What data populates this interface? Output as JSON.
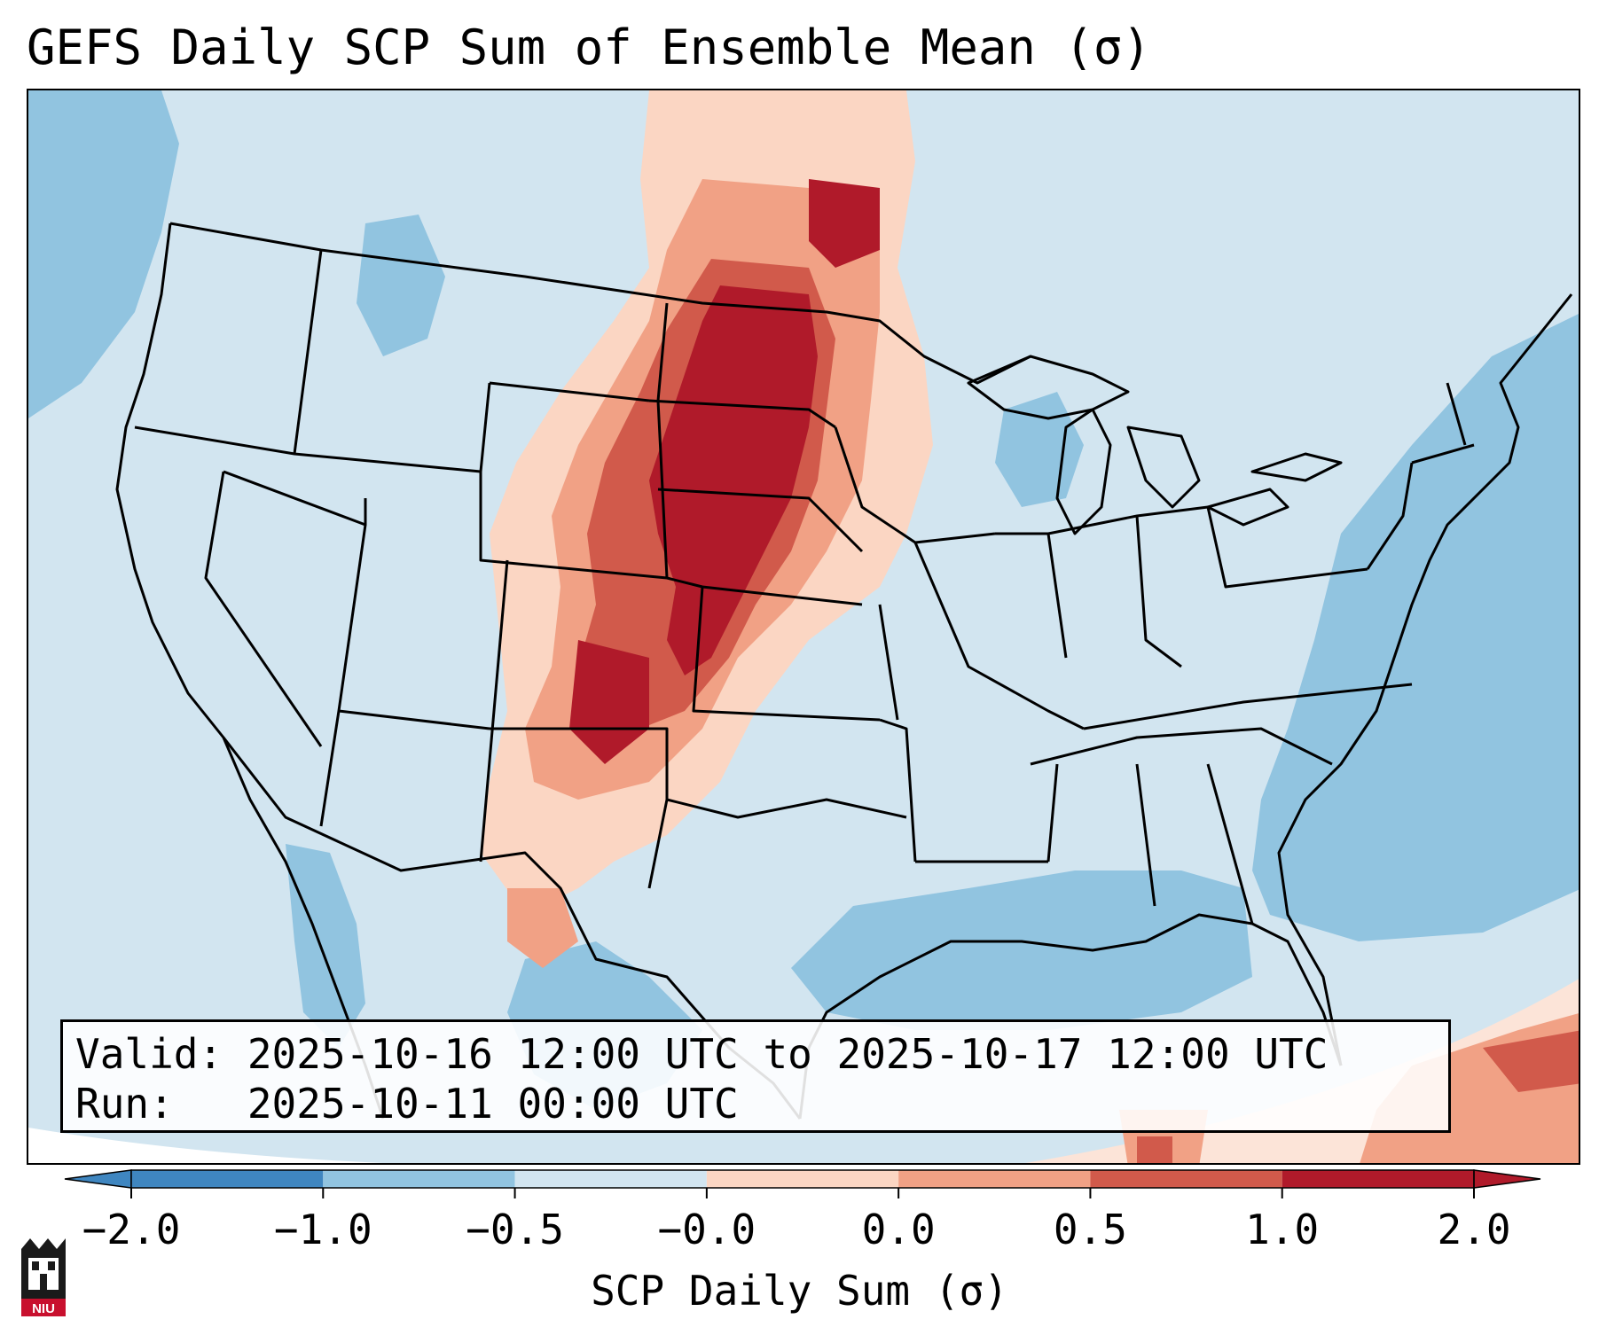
{
  "title": "GEFS Daily SCP Sum of Ensemble Mean (σ)",
  "info": {
    "valid_line": "Valid: 2025-10-16 12:00 UTC to 2025-10-17 12:00 UTC",
    "run_line": "Run:   2025-10-11 00:00 UTC"
  },
  "colorbar": {
    "label": "SCP Daily Sum (σ)",
    "ticks": [
      "−2.0",
      "−1.0",
      "−0.5",
      "−0.0",
      "0.0",
      "0.5",
      "1.0",
      "2.0"
    ],
    "colors": [
      "#3f86c0",
      "#91c4e0",
      "#d2e5f0",
      "#f7f7f7",
      "#fbd6c3",
      "#f1a185",
      "#d15a4b",
      "#b01a2a"
    ],
    "extend": "both"
  },
  "map": {
    "region": "Continental United States",
    "background_color": "#d2e5f0",
    "ocean_color": "#91c4e0",
    "max_color": "#b01a2a"
  },
  "logo": {
    "text": "NIU"
  }
}
